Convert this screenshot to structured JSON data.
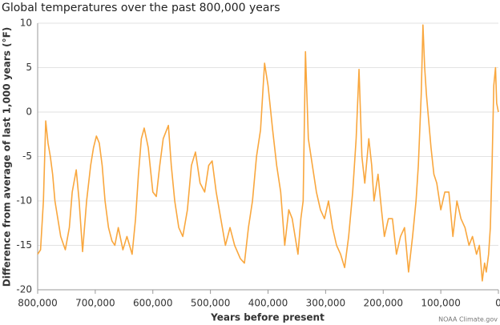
{
  "chart_data": {
    "type": "line",
    "title": "Global temperatures over the past 800,000 years",
    "y_label": "Difference from average of last 1,000 years (°F)",
    "x_label": "Years before present",
    "credit": "NOAA Climate.gov",
    "color": "#f9a73e",
    "x": [
      800000,
      795000,
      790000,
      786000,
      782000,
      778000,
      774000,
      770000,
      765000,
      760000,
      752000,
      745000,
      740000,
      733000,
      728000,
      722000,
      715000,
      708000,
      703000,
      698000,
      693000,
      688000,
      683000,
      677000,
      671000,
      666000,
      660000,
      652000,
      645000,
      636000,
      630000,
      625000,
      620000,
      615000,
      608000,
      600000,
      594000,
      588000,
      582000,
      576000,
      573000,
      568000,
      562000,
      555000,
      548000,
      540000,
      533000,
      526000,
      518000,
      510000,
      503000,
      497000,
      490000,
      482000,
      474000,
      466000,
      458000,
      448000,
      441000,
      434000,
      427000,
      420000,
      413000,
      406000,
      400000,
      392000,
      385000,
      378000,
      371000,
      364000,
      358000,
      348000,
      343000,
      339000,
      335000,
      330000,
      323000,
      316000,
      309000,
      302000,
      295000,
      288000,
      281000,
      274000,
      267000,
      260000,
      253000,
      247000,
      242000,
      237000,
      232000,
      225000,
      220000,
      216000,
      209000,
      203000,
      198000,
      191000,
      184000,
      177000,
      170000,
      163000,
      156000,
      149000,
      143000,
      139000,
      134000,
      131000,
      128000,
      125000,
      121000,
      117000,
      112000,
      107000,
      100000,
      93000,
      86000,
      79000,
      72000,
      65000,
      58000,
      51000,
      45000,
      38000,
      33000,
      28000,
      24000,
      21000,
      17000,
      14000,
      11000,
      8000,
      5000,
      3000,
      0
    ],
    "values": [
      -16,
      -15.5,
      -10,
      -1,
      -3.5,
      -5,
      -7,
      -10,
      -12,
      -14,
      -15.5,
      -13,
      -9,
      -6.5,
      -10,
      -15.7,
      -10,
      -6,
      -4,
      -2.7,
      -3.5,
      -6,
      -10,
      -13,
      -14.5,
      -15,
      -13,
      -15.5,
      -14,
      -16,
      -12,
      -7,
      -3,
      -1.8,
      -4,
      -9,
      -9.5,
      -6,
      -3,
      -2,
      -1.5,
      -6,
      -10,
      -13,
      -14,
      -11,
      -6,
      -4.5,
      -8,
      -9,
      -6,
      -5.5,
      -9,
      -12,
      -15,
      -13,
      -15,
      -16.5,
      -17,
      -13,
      -10,
      -5,
      -2,
      5.5,
      3,
      -2,
      -6,
      -9,
      -15,
      -11,
      -12,
      -16,
      -12,
      -10,
      6.8,
      -3,
      -6,
      -9,
      -11,
      -12,
      -10,
      -13,
      -15,
      -16,
      -17.5,
      -14,
      -9,
      -3,
      4.8,
      -5,
      -8,
      -3,
      -6,
      -10,
      -7,
      -11,
      -14,
      -12,
      -12,
      -16,
      -14,
      -13,
      -18,
      -14,
      -10,
      -6,
      2,
      9.8,
      5,
      2,
      -1,
      -4,
      -7,
      -8,
      -11,
      -9,
      -9,
      -14,
      -10,
      -12,
      -13,
      -15,
      -14,
      -16,
      -15,
      -19,
      -17,
      -18,
      -16,
      -13,
      -6,
      3,
      5,
      1,
      0
    ],
    "xlim": [
      800000,
      0
    ],
    "ylim": [
      -20,
      10
    ],
    "xticks": [
      {
        "value": 800000,
        "label": "800,000"
      },
      {
        "value": 700000,
        "label": "700,000"
      },
      {
        "value": 600000,
        "label": "600,000"
      },
      {
        "value": 500000,
        "label": "500,000"
      },
      {
        "value": 400000,
        "label": "400,000"
      },
      {
        "value": 300000,
        "label": "300,000"
      },
      {
        "value": 200000,
        "label": "200,000"
      },
      {
        "value": 100000,
        "label": "100,000"
      },
      0
    ],
    "yticks": [
      -20,
      -15,
      -10,
      -5,
      0,
      5,
      10
    ],
    "grid": true
  }
}
